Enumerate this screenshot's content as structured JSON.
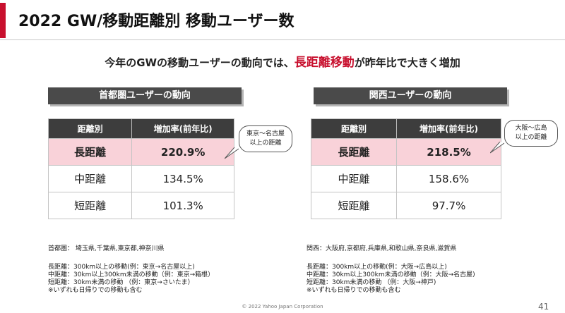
{
  "title": "2022 GW/移動距離別 移動ユーザー数",
  "subtitle": {
    "prefix": "今年のGWの移動ユーザーの動向では、",
    "highlight": "長距離移動",
    "suffix": "が昨年比で大きく増加"
  },
  "colors": {
    "accent": "#c8102e",
    "header_dark": "#3d3d3d",
    "highlight_row": "#f9d2d9"
  },
  "panels": [
    {
      "header": "首都圏ユーザーの動向",
      "columns": [
        "距離別",
        "増加率(前年比)"
      ],
      "rows": [
        {
          "category": "長距離",
          "rate": "220.9%"
        },
        {
          "category": "中距離",
          "rate": "134.5%"
        },
        {
          "category": "短距離",
          "rate": "101.3%"
        }
      ],
      "callout": [
        "東京～名古屋",
        "以上の距離"
      ],
      "area_note": "首都圏： 埼玉県,千葉県,東京都,神奈川県",
      "definitions": [
        "長距離：300km以上の移動(例：東京→名古屋以上)",
        "中距離：30km以上300km未満の移動（例：東京→箱根）",
        "短距離：30km未満の移動 （例：東京→さいたま）",
        "※いずれも日帰りでの移動も含む"
      ]
    },
    {
      "header": "関西ユーザーの動向",
      "columns": [
        "距離別",
        "増加率(前年比)"
      ],
      "rows": [
        {
          "category": "長距離",
          "rate": "218.5%"
        },
        {
          "category": "中距離",
          "rate": "158.6%"
        },
        {
          "category": "短距離",
          "rate": "97.7%"
        }
      ],
      "callout": [
        "大阪～広島",
        "以上の距離"
      ],
      "area_note": "関西：大阪府,京都府,兵庫県,和歌山県,奈良県,滋賀県",
      "definitions": [
        "長距離：300km以上の移動(例：大阪→広島以上)",
        "中距離：30km以上300km未満の移動（例：大阪→名古屋)",
        "短距離：30km未満の移動 （例：大阪→神戸)",
        "※いずれも日帰りでの移動も含む"
      ]
    }
  ],
  "footer": "© 2022 Yahoo Japan Corporation",
  "page_number": "41"
}
